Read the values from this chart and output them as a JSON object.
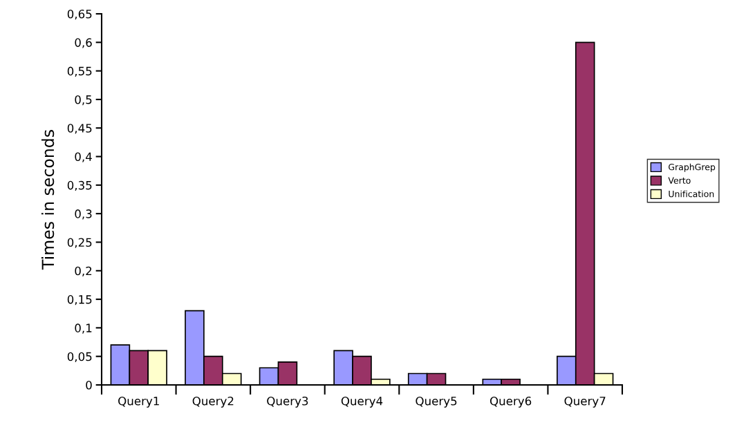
{
  "chart_data": {
    "type": "bar",
    "ylabel": "Times in seconds",
    "categories": [
      "Query1",
      "Query2",
      "Query3",
      "Query4",
      "Query5",
      "Query6",
      "Query7"
    ],
    "series": [
      {
        "name": "GraphGrep",
        "color": "#9999ff",
        "values": [
          0.07,
          0.13,
          0.03,
          0.06,
          0.02,
          0.01,
          0.05
        ]
      },
      {
        "name": "Verto",
        "color": "#993366",
        "values": [
          0.06,
          0.05,
          0.04,
          0.05,
          0.02,
          0.01,
          0.6
        ]
      },
      {
        "name": "Unification",
        "color": "#ffffcc",
        "values": [
          0.06,
          0.02,
          0,
          0.01,
          0,
          0,
          0.02
        ]
      }
    ],
    "ylim": [
      0,
      0.65
    ],
    "yticks": [
      0,
      {
        "value": 0.05,
        "label": "0,05"
      },
      {
        "value": 0.1,
        "label": "0,1"
      },
      {
        "value": 0.15,
        "label": "0,15"
      },
      {
        "value": 0.2,
        "label": "0,2"
      },
      {
        "value": 0.25,
        "label": "0,25"
      },
      {
        "value": 0.3,
        "label": "0,3"
      },
      {
        "value": 0.35,
        "label": "0,35"
      },
      {
        "value": 0.4,
        "label": "0,4"
      },
      {
        "value": 0.45,
        "label": "0,45"
      },
      {
        "value": 0.5,
        "label": "0,5"
      },
      {
        "value": 0.55,
        "label": "0,55"
      },
      {
        "value": 0.6,
        "label": "0,6"
      },
      {
        "value": 0.65,
        "label": "0,65"
      }
    ],
    "grid": false,
    "legend": "right"
  }
}
